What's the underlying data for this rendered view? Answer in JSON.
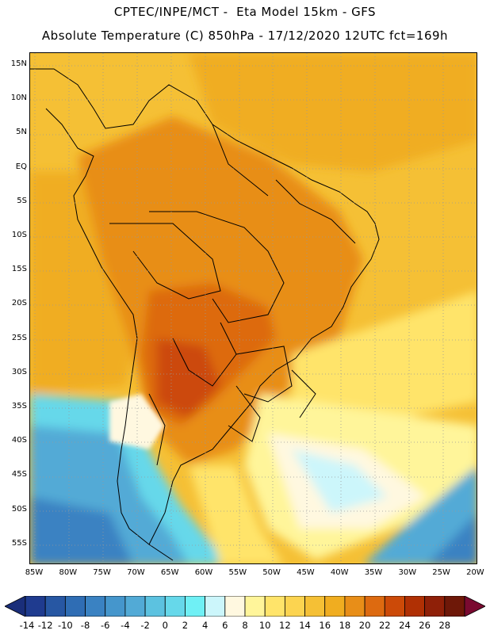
{
  "header": {
    "line1": "CPTEC/INPE/MCT -  Eta Model 15km - GFS",
    "line2": "Absolute Temperature (C) 850hPa - 17/12/2020 12UTC fct=169h"
  },
  "map": {
    "lat_ticks": [
      "15N",
      "10N",
      "5N",
      "EQ",
      "5S",
      "10S",
      "15S",
      "20S",
      "25S",
      "30S",
      "35S",
      "40S",
      "45S",
      "50S",
      "55S"
    ],
    "lon_ticks": [
      "85W",
      "80W",
      "75W",
      "70W",
      "65W",
      "60W",
      "55W",
      "50W",
      "45W",
      "40W",
      "35W",
      "30W",
      "25W",
      "20W"
    ]
  },
  "colorbar": {
    "labels": [
      "-14",
      "-12",
      "-10",
      "-8",
      "-6",
      "-4",
      "-2",
      "0",
      "2",
      "4",
      "6",
      "8",
      "10",
      "12",
      "14",
      "16",
      "18",
      "20",
      "22",
      "24",
      "26",
      "28"
    ],
    "colors": [
      "#1f3b8f",
      "#2757a3",
      "#2f6db4",
      "#3a82c2",
      "#4596cc",
      "#52aad6",
      "#5cc2e0",
      "#66d8ea",
      "#6ff0f5",
      "#ccf6fb",
      "#fff8e0",
      "#fff59a",
      "#ffe46a",
      "#fcd450",
      "#f5c035",
      "#f0ad20",
      "#e88e18",
      "#dd6a10",
      "#cc4a08",
      "#b03004",
      "#8f2008",
      "#6e1808"
    ],
    "end_left_color": "#1a2e7a",
    "end_right_color": "#7a0a30"
  }
}
